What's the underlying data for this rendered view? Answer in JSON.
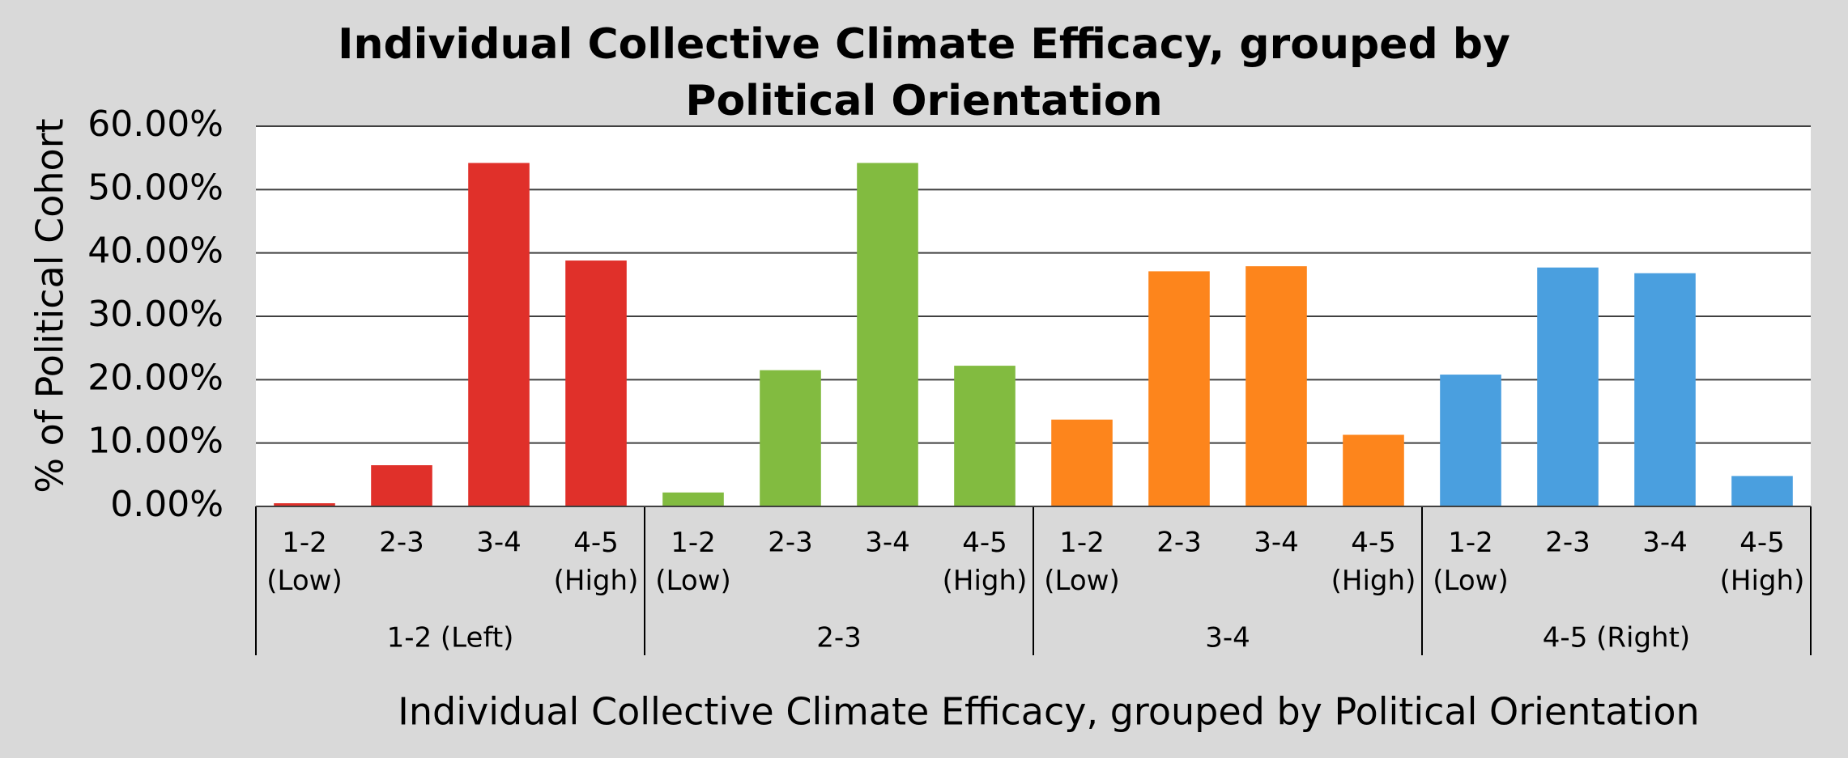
{
  "chart_data": {
    "type": "bar",
    "title": "Individual Collective Climate Efficacy, grouped by Political Orientation",
    "x_label": "Individual Collective Climate Efficacy, grouped by Political Orientation",
    "y_label": "% of Political Cohort",
    "ylim": [
      0,
      60
    ],
    "yticks": [
      {
        "value": 0,
        "label": "0.00%"
      },
      {
        "value": 10,
        "label": "10.00%"
      },
      {
        "value": 20,
        "label": "20.00%"
      },
      {
        "value": 30,
        "label": "30.00%"
      },
      {
        "value": 40,
        "label": "40.00%"
      },
      {
        "value": 50,
        "label": "50.00%"
      },
      {
        "value": 60,
        "label": "60.00%"
      }
    ],
    "grid": true,
    "groups": [
      {
        "name": "1-2 (Left)",
        "color": "#e0302a",
        "categories": [
          "1-2 (Low)",
          "2-3",
          "3-4",
          "4-5 (High)"
        ],
        "values": [
          0.5,
          6.5,
          54.2,
          38.8
        ]
      },
      {
        "name": "2-3",
        "color": "#82bb40",
        "categories": [
          "1-2 (Low)",
          "2-3",
          "3-4",
          "4-5 (High)"
        ],
        "values": [
          2.2,
          21.5,
          54.2,
          22.2
        ]
      },
      {
        "name": "3-4",
        "color": "#fd851c",
        "categories": [
          "1-2 (Low)",
          "2-3",
          "3-4",
          "4-5 (High)"
        ],
        "values": [
          13.7,
          37.1,
          37.9,
          11.3
        ]
      },
      {
        "name": "4-5 (Right)",
        "color": "#4a9fdf",
        "categories": [
          "1-2 (Low)",
          "2-3",
          "3-4",
          "4-5 (High)"
        ],
        "values": [
          20.8,
          37.7,
          36.8,
          4.8
        ]
      }
    ]
  }
}
